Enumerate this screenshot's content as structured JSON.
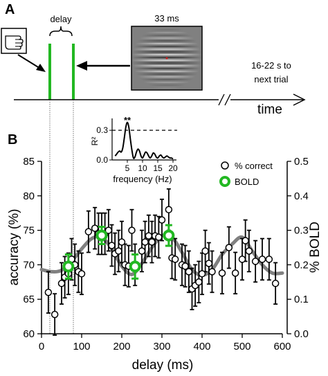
{
  "panel_a": {
    "label": "A",
    "delay_label": "delay",
    "duration_label": "33 ms",
    "iti_line1": "16-22 s to",
    "iti_line2": "next trial",
    "time_label": "time",
    "icons": {
      "response": "hand-icon",
      "stimulus": "gabor-grating"
    }
  },
  "panel_b": {
    "label": "B"
  },
  "colors": {
    "accuracy": "#000000",
    "bold": "#22b822",
    "fit": "#808080",
    "frame": "#000000"
  },
  "chart_data": [
    {
      "type": "scatter",
      "xlabel": "delay (ms)",
      "ylabel": "accuracy (%)",
      "y2label": "% BOLD",
      "xlim": [
        0,
        600
      ],
      "ylim": [
        60,
        85
      ],
      "y2lim": [
        0,
        0.5
      ],
      "xticks": [
        0,
        100,
        200,
        300,
        400,
        500,
        600
      ],
      "yticks": [
        60,
        65,
        70,
        75,
        80,
        85
      ],
      "y2ticks": [
        0.0,
        0.1,
        0.2,
        0.3,
        0.4,
        0.5
      ],
      "y2ticklabels": [
        "0.0",
        "0.1",
        "0.2",
        "0.3",
        "0.4",
        "0.5"
      ],
      "legend": {
        "placement": "top-right",
        "entries": [
          "% correct",
          "BOLD"
        ]
      },
      "series": [
        {
          "name": "% correct",
          "x": [
            17,
            33,
            50,
            58,
            67,
            75,
            83,
            92,
            100,
            117,
            133,
            142,
            150,
            158,
            167,
            175,
            183,
            192,
            200,
            208,
            217,
            225,
            233,
            250,
            258,
            267,
            275,
            283,
            292,
            300,
            317,
            325,
            333,
            350,
            358,
            367,
            375,
            383,
            392,
            400,
            408,
            417,
            425,
            450,
            467,
            483,
            500,
            508,
            517,
            533,
            550,
            567,
            583
          ],
          "y": [
            66.0,
            62.8,
            67.3,
            68.2,
            68.7,
            70.8,
            70.0,
            69.0,
            68.7,
            74.8,
            75.3,
            74.5,
            74.5,
            74.5,
            75.0,
            72.8,
            71.6,
            72.0,
            73.3,
            70.0,
            69.8,
            75.0,
            70.0,
            72.0,
            73.3,
            74.2,
            73.3,
            74.2,
            74.0,
            76.5,
            78.0,
            71.0,
            70.8,
            70.0,
            69.8,
            69.0,
            66.5,
            67.0,
            67.5,
            68.7,
            72.0,
            70.2,
            69.0,
            68.8,
            72.5,
            68.8,
            70.8,
            73.5,
            72.0,
            70.5,
            70.8,
            70.8,
            67.3
          ],
          "yerr": [
            3.0,
            3.0,
            3.0,
            3.0,
            3.0,
            3.0,
            3.0,
            3.0,
            3.0,
            3.0,
            3.0,
            3.0,
            3.0,
            3.0,
            3.0,
            3.0,
            3.0,
            3.0,
            3.0,
            3.0,
            3.0,
            3.0,
            3.0,
            3.0,
            3.0,
            3.0,
            3.0,
            3.0,
            3.0,
            3.0,
            3.0,
            3.0,
            3.0,
            3.0,
            3.0,
            3.0,
            3.0,
            3.0,
            3.0,
            3.0,
            3.0,
            3.0,
            3.0,
            3.0,
            3.0,
            3.0,
            3.0,
            3.0,
            3.0,
            3.0,
            3.0,
            3.0,
            3.0
          ]
        },
        {
          "name": "BOLD",
          "axis": "y2",
          "x": [
            67,
            150,
            233,
            317
          ],
          "y": [
            0.195,
            0.285,
            0.195,
            0.285
          ],
          "yerr": [
            0.035,
            0.025,
            0.035,
            0.03
          ]
        },
        {
          "type": "line",
          "x": [
            0,
            25,
            50,
            75,
            100,
            125,
            150,
            175,
            200,
            225,
            250,
            275,
            300,
            325,
            350,
            375,
            400,
            425,
            450,
            475,
            500,
            525,
            550,
            575,
            600
          ],
          "y": [
            69.3,
            69.0,
            69.2,
            70.5,
            72.3,
            73.8,
            74.0,
            72.3,
            69.8,
            68.6,
            70.2,
            72.5,
            74.2,
            74.0,
            71.8,
            69.3,
            68.5,
            69.3,
            71.5,
            73.0,
            74.0,
            72.0,
            70.0,
            68.8,
            68.8
          ]
        }
      ]
    },
    {
      "type": "line",
      "xlabel": "frequency (Hz)",
      "ylabel": "R²",
      "xlim": [
        0,
        20
      ],
      "ylim": [
        0,
        0.42
      ],
      "xticks": [
        5,
        10,
        15,
        20
      ],
      "yticks": [
        0.0,
        0.3
      ],
      "yticklabels": [
        "0.0",
        "0.3"
      ],
      "threshold": 0.3,
      "annotation": "**",
      "peak_x": 5,
      "series": [
        {
          "x": [
            1,
            1.5,
            2,
            2.5,
            3,
            3.5,
            4,
            4.5,
            5,
            5.5,
            6,
            6.5,
            7,
            7.5,
            8,
            8.5,
            9,
            9.5,
            10,
            10.5,
            11,
            11.5,
            12,
            12.5,
            13,
            13.5,
            14,
            14.5,
            15,
            15.5,
            16,
            16.5,
            17,
            17.5,
            18,
            18.5,
            19,
            19.5,
            20
          ],
          "y": [
            0.04,
            0.06,
            0.08,
            0.09,
            0.08,
            0.12,
            0.22,
            0.33,
            0.38,
            0.33,
            0.21,
            0.1,
            0.02,
            0.03,
            0.08,
            0.11,
            0.09,
            0.04,
            0.02,
            0.05,
            0.08,
            0.07,
            0.04,
            0.02,
            0.04,
            0.07,
            0.06,
            0.03,
            0.02,
            0.04,
            0.05,
            0.03,
            0.02,
            0.03,
            0.04,
            0.03,
            0.02,
            0.02,
            0.01
          ]
        }
      ]
    }
  ]
}
